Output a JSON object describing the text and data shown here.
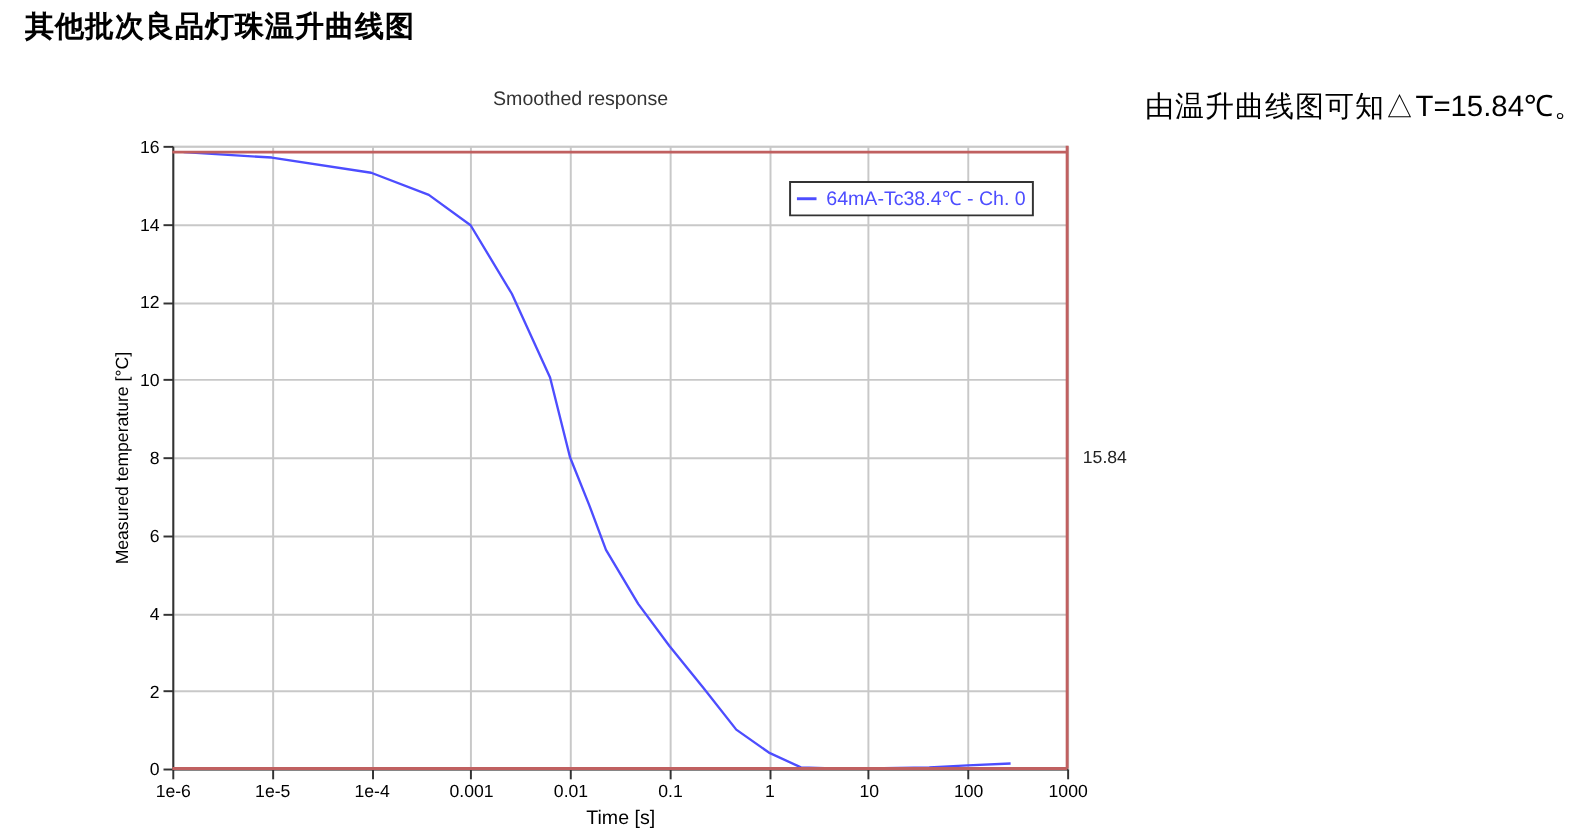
{
  "chart_data": {
    "type": "line",
    "title": "其他批次良品灯珠温升曲线图",
    "subtitle": "Smoothed response",
    "xlabel": "Time [s]",
    "ylabel": "Measured temperature [°C]",
    "annotations": [
      "由温升曲线图可知△T=15.84℃。",
      {
        "text": "15.84",
        "x": 1000,
        "y": 8
      }
    ],
    "x": [
      1.3e-06,
      1e-05,
      0.0001,
      0.00038,
      0.001,
      0.0026,
      0.0063,
      0.01,
      0.0156,
      0.023,
      0.0485,
      0.1,
      0.22,
      0.47,
      1,
      2.1,
      4.4,
      10,
      41,
      100,
      270
    ],
    "series": [
      {
        "name": "64mA-Tc38.4℃ - Ch. 0",
        "color": "#4d4dff",
        "values": [
          15.84,
          15.7,
          15.31,
          14.74,
          13.96,
          12.2,
          10.05,
          8.0,
          6.77,
          5.62,
          4.23,
          3.15,
          2.07,
          1.0,
          0.41,
          0.03,
          0.0,
          0.0,
          0.03,
          0.08,
          0.13
        ]
      }
    ],
    "log": "x",
    "xlim": [
      1e-06,
      1000
    ],
    "ylim": [
      0,
      16
    ],
    "xticks": [
      {
        "value": 1e-06,
        "label": "1e-6"
      },
      {
        "value": 1e-05,
        "label": "1e-5"
      },
      {
        "value": 0.0001,
        "label": "1e-4"
      },
      0.001,
      0.01,
      0.1,
      1,
      10,
      100,
      1000
    ],
    "yticks": [
      0,
      2,
      4,
      6,
      8,
      10,
      12,
      14,
      16
    ],
    "ref_lines": [
      {
        "axis": "y",
        "value": 15.84,
        "color": "#c06060"
      },
      {
        "axis": "y",
        "value": 0,
        "color": "#c06060"
      },
      {
        "axis": "x",
        "value": 1000,
        "color": "#c06060"
      }
    ],
    "grid": true,
    "legend": "top right",
    "line_style": "solid",
    "marker": "none"
  }
}
